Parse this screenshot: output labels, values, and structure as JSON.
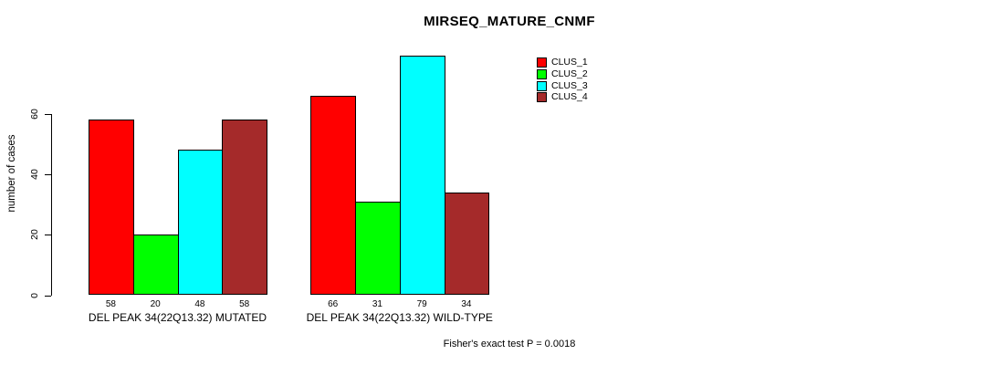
{
  "chart_data": {
    "type": "bar",
    "title": "MIRSEQ_MATURE_CNMF",
    "ylabel": "number of cases",
    "yticks": [
      0,
      20,
      40,
      60
    ],
    "ylim": [
      0,
      80
    ],
    "grid": false,
    "legend_position": "top-right",
    "series": [
      {
        "name": "CLUS_1",
        "color": "#FF0000",
        "values": [
          58,
          66
        ]
      },
      {
        "name": "CLUS_2",
        "color": "#00FF00",
        "values": [
          20,
          31
        ]
      },
      {
        "name": "CLUS_3",
        "color": "#00FFFF",
        "values": [
          48,
          79
        ]
      },
      {
        "name": "CLUS_4",
        "color": "#A52A2A",
        "values": [
          58,
          34
        ]
      }
    ],
    "categories": [
      "DEL PEAK 34(22Q13.32) MUTATED",
      "DEL PEAK 34(22Q13.32) WILD-TYPE"
    ],
    "bar_value_labels": [
      [
        58,
        20,
        48,
        58
      ],
      [
        66,
        31,
        79,
        34
      ]
    ],
    "footnote": "Fisher's exact test P = 0.0018"
  }
}
